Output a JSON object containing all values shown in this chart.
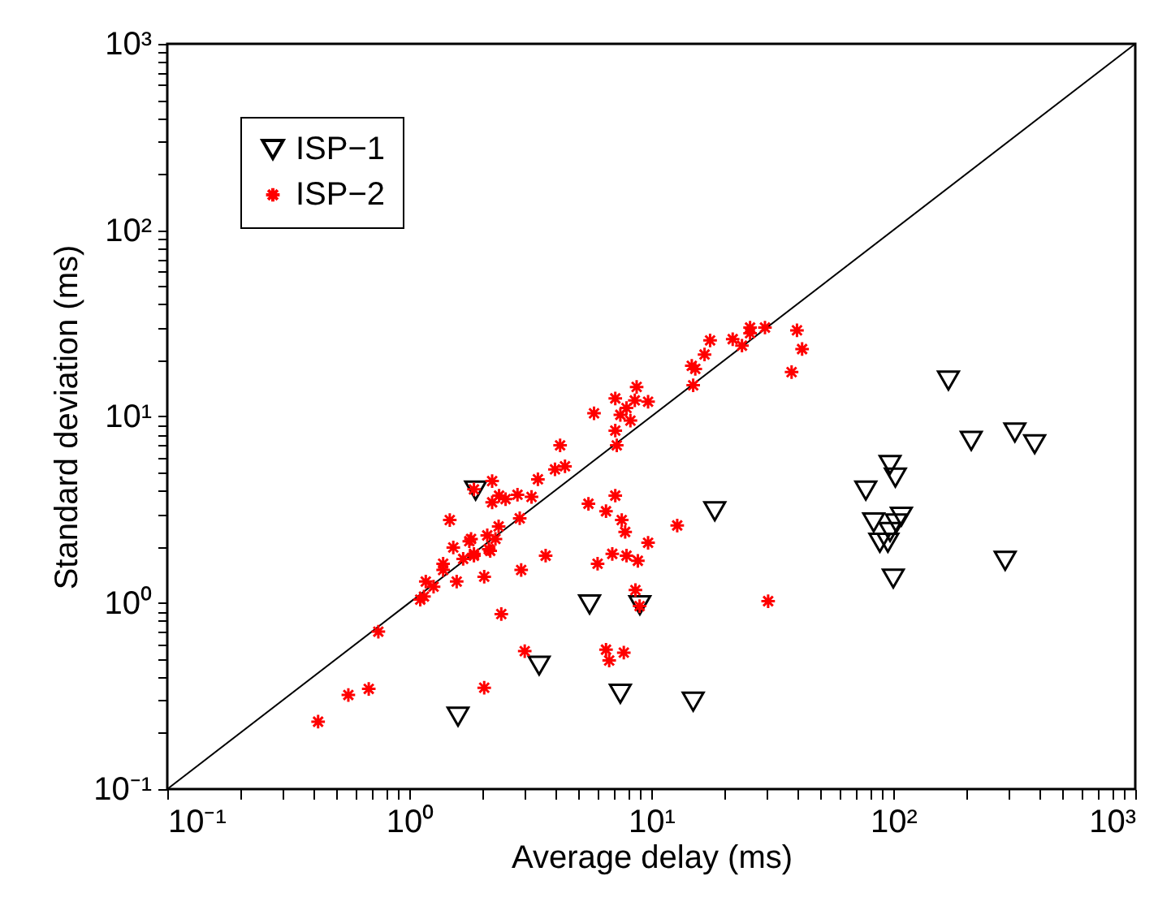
{
  "chart_data": {
    "type": "scatter",
    "xlabel": "Average delay (ms)",
    "ylabel": "Standard deviation (ms)",
    "log": "xy",
    "legend": "top left",
    "xlim": [
      0.1,
      1000
    ],
    "ylim": [
      0.1,
      1000
    ],
    "xticks": [
      {
        "value": 0.1,
        "label": "10⁻¹"
      },
      {
        "value": 0.2,
        "label": null
      },
      {
        "value": 0.3,
        "label": null
      },
      {
        "value": 0.4,
        "label": null
      },
      {
        "value": 0.5,
        "label": null
      },
      {
        "value": 0.6,
        "label": null
      },
      {
        "value": 0.7,
        "label": null
      },
      {
        "value": 0.8,
        "label": null
      },
      {
        "value": 0.9,
        "label": null
      },
      {
        "value": 1,
        "label": "10⁰"
      },
      {
        "value": 2,
        "label": null
      },
      {
        "value": 3,
        "label": null
      },
      {
        "value": 4,
        "label": null
      },
      {
        "value": 5,
        "label": null
      },
      {
        "value": 6,
        "label": null
      },
      {
        "value": 7,
        "label": null
      },
      {
        "value": 8,
        "label": null
      },
      {
        "value": 9,
        "label": null
      },
      {
        "value": 10,
        "label": "10¹"
      },
      {
        "value": 20,
        "label": null
      },
      {
        "value": 30,
        "label": null
      },
      {
        "value": 40,
        "label": null
      },
      {
        "value": 50,
        "label": null
      },
      {
        "value": 60,
        "label": null
      },
      {
        "value": 70,
        "label": null
      },
      {
        "value": 80,
        "label": null
      },
      {
        "value": 90,
        "label": null
      },
      {
        "value": 100,
        "label": "10²"
      },
      {
        "value": 200,
        "label": null
      },
      {
        "value": 300,
        "label": null
      },
      {
        "value": 400,
        "label": null
      },
      {
        "value": 500,
        "label": null
      },
      {
        "value": 600,
        "label": null
      },
      {
        "value": 700,
        "label": null
      },
      {
        "value": 800,
        "label": null
      },
      {
        "value": 900,
        "label": null
      },
      {
        "value": 1000,
        "label": "10³"
      }
    ],
    "yticks": [
      {
        "value": 0.1,
        "label": "10⁻¹"
      },
      {
        "value": 0.2,
        "label": null
      },
      {
        "value": 0.3,
        "label": null
      },
      {
        "value": 0.4,
        "label": null
      },
      {
        "value": 0.5,
        "label": null
      },
      {
        "value": 0.6,
        "label": null
      },
      {
        "value": 0.7,
        "label": null
      },
      {
        "value": 0.8,
        "label": null
      },
      {
        "value": 0.9,
        "label": null
      },
      {
        "value": 1,
        "label": "10⁰"
      },
      {
        "value": 2,
        "label": null
      },
      {
        "value": 3,
        "label": null
      },
      {
        "value": 4,
        "label": null
      },
      {
        "value": 5,
        "label": null
      },
      {
        "value": 6,
        "label": null
      },
      {
        "value": 7,
        "label": null
      },
      {
        "value": 8,
        "label": null
      },
      {
        "value": 9,
        "label": null
      },
      {
        "value": 10,
        "label": "10¹"
      },
      {
        "value": 20,
        "label": null
      },
      {
        "value": 30,
        "label": null
      },
      {
        "value": 40,
        "label": null
      },
      {
        "value": 50,
        "label": null
      },
      {
        "value": 60,
        "label": null
      },
      {
        "value": 70,
        "label": null
      },
      {
        "value": 80,
        "label": null
      },
      {
        "value": 90,
        "label": null
      },
      {
        "value": 100,
        "label": "10²"
      },
      {
        "value": 200,
        "label": null
      },
      {
        "value": 300,
        "label": null
      },
      {
        "value": 400,
        "label": null
      },
      {
        "value": 500,
        "label": null
      },
      {
        "value": 600,
        "label": null
      },
      {
        "value": 700,
        "label": null
      },
      {
        "value": 800,
        "label": null
      },
      {
        "value": 900,
        "label": null
      },
      {
        "value": 1000,
        "label": "10³"
      }
    ],
    "series": [
      {
        "type": "line",
        "color": "#000000",
        "x": [
          0.1,
          1000
        ],
        "values": [
          0.1,
          1000
        ]
      },
      {
        "name": "ISP−1",
        "color": "#000000",
        "marker": "triangle",
        "x": [
          1.88,
          5.56,
          8.97,
          18.3,
          3.44,
          7.45,
          14.9,
          1.59,
          169,
          210,
          318,
          384,
          97,
          102,
          77,
          83,
          108,
          103,
          97,
          88,
          95,
          100,
          290
        ],
        "values": [
          4.0,
          0.98,
          0.97,
          3.1,
          0.46,
          0.325,
          0.295,
          0.245,
          15.6,
          7.4,
          8.2,
          7.1,
          5.5,
          4.7,
          4.0,
          2.7,
          2.9,
          2.67,
          2.4,
          2.1,
          2.1,
          1.35,
          1.68
        ]
      },
      {
        "name": "ISP−2",
        "color": "#ff0000",
        "marker": "cross",
        "x": [
          40,
          42,
          38,
          29.5,
          25.6,
          25.6,
          21.7,
          23.7,
          17.5,
          16.6,
          14.7,
          15.2,
          14.9,
          8.7,
          7.1,
          8.55,
          9.7,
          7.9,
          7.45,
          5.8,
          8.2,
          7.1,
          7.2,
          4.2,
          4.4,
          4.0,
          3.4,
          2.2,
          2.8,
          3.2,
          2.35,
          2.5,
          2.2,
          2.86,
          2.34,
          2.1,
          2.27,
          1.8,
          2.16,
          1.85,
          1.67,
          5.5,
          7.1,
          6.5,
          7.55,
          7.8,
          12.8,
          9.7,
          3.66,
          6.9,
          7.9,
          8.8,
          6.0,
          8.6,
          8.95,
          30.4,
          6.5,
          7.7,
          6.7,
          0.42,
          0.56,
          0.68,
          0.745,
          2.04,
          3.0,
          2.4,
          1.11,
          1.15,
          1.17,
          1.26,
          1.38,
          1.38,
          1.57,
          1.52,
          1.85,
          2.13,
          2.04,
          2.9,
          1.85,
          1.47,
          1.77
        ],
        "values": [
          29,
          23,
          17.3,
          30,
          30,
          28,
          26,
          24,
          25.6,
          21.5,
          18.7,
          18,
          14.7,
          14.4,
          12.5,
          12.2,
          12,
          11.1,
          10.2,
          10.4,
          9.5,
          8.4,
          7,
          7,
          5.4,
          5.2,
          4.6,
          4.5,
          3.8,
          3.7,
          3.76,
          3.6,
          3.46,
          2.84,
          2.57,
          2.3,
          2.2,
          2.2,
          1.9,
          1.83,
          1.72,
          3.4,
          3.76,
          3.1,
          2.78,
          2.4,
          2.6,
          2.1,
          1.79,
          1.83,
          1.79,
          1.68,
          1.62,
          1.17,
          0.96,
          1.02,
          0.56,
          0.54,
          0.49,
          0.23,
          0.32,
          0.345,
          0.7,
          0.35,
          0.55,
          0.87,
          1.04,
          1.08,
          1.3,
          1.22,
          1.62,
          1.5,
          1.3,
          1.98,
          1.79,
          1.94,
          1.38,
          1.5,
          4.06,
          2.78,
          2.14
        ]
      }
    ]
  }
}
